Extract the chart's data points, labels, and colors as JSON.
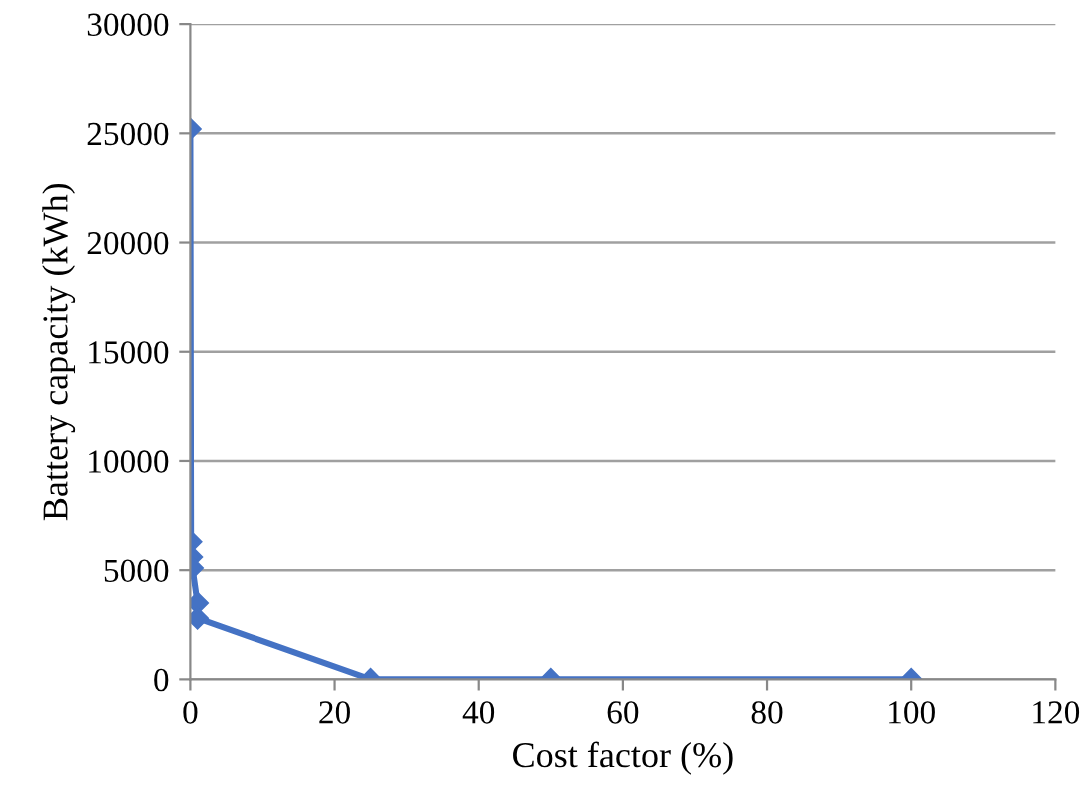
{
  "chart_data": {
    "type": "line",
    "xlabel": "Cost factor (%)",
    "ylabel": "Battery capacity (kWh)",
    "series": [
      {
        "color": "#4472c4",
        "x": [
          0,
          0.1,
          0.2,
          0.3,
          1,
          1,
          25,
          50,
          100
        ],
        "values": [
          25200,
          6300,
          5600,
          5100,
          3500,
          2800,
          0,
          0,
          0
        ]
      }
    ],
    "xlim": [
      0,
      120
    ],
    "xticks": [
      0,
      20,
      40,
      60,
      80,
      100,
      120
    ],
    "ylim": [
      0,
      30000
    ],
    "yticks": [
      0,
      5000,
      10000,
      15000,
      20000,
      25000,
      30000
    ],
    "grid": "y",
    "marker": "diamond",
    "line_style": "solid"
  }
}
